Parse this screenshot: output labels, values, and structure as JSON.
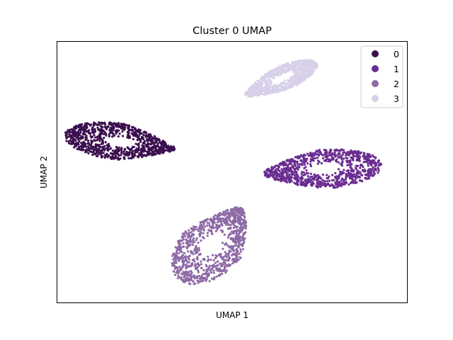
{
  "chart_data": {
    "type": "scatter",
    "title": "Cluster 0 UMAP",
    "xlabel": "UMAP 1",
    "ylabel": "UMAP 2",
    "xlim": [
      -10,
      10
    ],
    "ylim": [
      -10,
      10
    ],
    "grid": false,
    "ticks_visible": false,
    "legend": {
      "placement": "top-right",
      "entries": [
        "0",
        "1",
        "2",
        "3"
      ]
    },
    "series": [
      {
        "name": "0",
        "color": "#3b0f4f",
        "center": [
          -6.4,
          2.3
        ],
        "spread": [
          3.2,
          1.4
        ],
        "angle_deg": -10,
        "lobe": "left"
      },
      {
        "name": "1",
        "color": "#6a2c91",
        "center": [
          5.2,
          0.2
        ],
        "spread": [
          3.4,
          1.5
        ],
        "angle_deg": 6,
        "lobe": "right"
      },
      {
        "name": "2",
        "color": "#8e6aa6",
        "center": [
          -1.1,
          -5.6
        ],
        "spread": [
          1.9,
          3.3
        ],
        "angle_deg": -30,
        "lobe": "bottom"
      },
      {
        "name": "3",
        "color": "#d7d0e8",
        "center": [
          2.8,
          7.1
        ],
        "spread": [
          2.4,
          0.9
        ],
        "angle_deg": 32,
        "lobe": "top"
      }
    ]
  }
}
